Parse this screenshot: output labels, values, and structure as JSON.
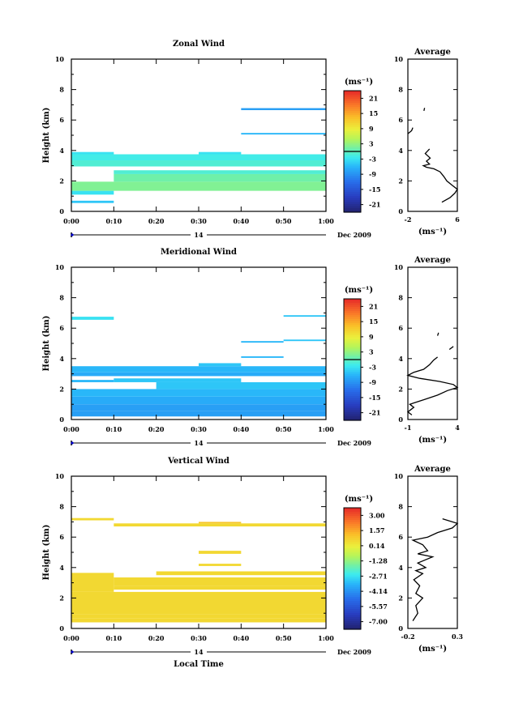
{
  "chart_data": [
    {
      "type": "heatmap",
      "title": "Zonal Wind",
      "xlabel": "",
      "ylabel": "Height (km)",
      "xticks": [
        "0:00",
        "0:10",
        "0:20",
        "0:30",
        "0:40",
        "0:50",
        "1:00"
      ],
      "xlim": [
        0,
        60
      ],
      "ylim": [
        0,
        10
      ],
      "yticks": [
        "0",
        "2",
        "4",
        "6",
        "8",
        "10"
      ],
      "date_day": "14",
      "date_month": "Dec 2009",
      "colorbar": {
        "unit": "(ms⁻¹)",
        "ticks": [
          "21",
          "15",
          "9",
          "3",
          "-3",
          "-9",
          "-15",
          "-21"
        ],
        "range": [
          -24,
          24
        ],
        "marker_value": 0
      },
      "cells": [
        {
          "t0": 0,
          "t1": 10,
          "h0": 0.55,
          "h1": 0.7,
          "v": -5
        },
        {
          "t0": 0,
          "t1": 10,
          "h0": 1.1,
          "h1": 1.35,
          "v": -3
        },
        {
          "t0": 0,
          "t1": 60,
          "h0": 1.35,
          "h1": 1.95,
          "v": 2
        },
        {
          "t0": 10,
          "t1": 60,
          "h0": 1.95,
          "h1": 2.45,
          "v": 1
        },
        {
          "t0": 10,
          "t1": 60,
          "h0": 2.45,
          "h1": 2.7,
          "v": -1
        },
        {
          "t0": 0,
          "t1": 60,
          "h0": 2.95,
          "h1": 3.35,
          "v": -1
        },
        {
          "t0": 0,
          "t1": 60,
          "h0": 3.35,
          "h1": 3.75,
          "v": -2
        },
        {
          "t0": 0,
          "t1": 10,
          "h0": 3.75,
          "h1": 3.9,
          "v": -3
        },
        {
          "t0": 30,
          "t1": 40,
          "h0": 3.75,
          "h1": 3.9,
          "v": -3
        },
        {
          "t0": 40,
          "t1": 60,
          "h0": 5.05,
          "h1": 5.15,
          "v": -6
        },
        {
          "t0": 40,
          "t1": 60,
          "h0": 6.65,
          "h1": 6.78,
          "v": -8
        }
      ],
      "average_panel": {
        "title": "Average",
        "xlabel": "(ms⁻¹)",
        "xticks": [
          "-2",
          "6"
        ],
        "xlim": [
          -2,
          6
        ],
        "ylim": [
          0,
          10
        ],
        "yticks": [
          "0",
          "2",
          "4",
          "6",
          "8",
          "10"
        ],
        "profile": [
          [
            3.5,
            0.6
          ],
          [
            4.8,
            0.9
          ],
          [
            5.6,
            1.2
          ],
          [
            6,
            1.45
          ],
          [
            5.2,
            1.7
          ],
          [
            4.3,
            2.0
          ],
          [
            3.8,
            2.3
          ],
          [
            3.2,
            2.6
          ],
          [
            2.2,
            2.8
          ],
          [
            1.0,
            2.9
          ],
          [
            0.5,
            3.0
          ],
          [
            1.5,
            3.1
          ],
          [
            1.0,
            3.3
          ],
          [
            1.6,
            3.5
          ],
          [
            0.8,
            3.8
          ],
          [
            1.5,
            4.1
          ]
        ],
        "profile_upper": [
          [
            -2,
            5.1
          ],
          [
            -1.4,
            5.3
          ],
          [
            -1.2,
            5.5
          ]
        ],
        "profile_small": [
          [
            0.6,
            6.6
          ],
          [
            0.7,
            6.8
          ]
        ]
      }
    },
    {
      "type": "heatmap",
      "title": "Meridional Wind",
      "xlabel": "",
      "ylabel": "Height (km)",
      "xticks": [
        "0:00",
        "0:10",
        "0:20",
        "0:30",
        "0:40",
        "0:50",
        "1:00"
      ],
      "xlim": [
        0,
        60
      ],
      "ylim": [
        0,
        10
      ],
      "yticks": [
        "0",
        "2",
        "4",
        "6",
        "8",
        "10"
      ],
      "date_day": "14",
      "date_month": "Dec 2009",
      "colorbar": {
        "unit": "(ms⁻¹)",
        "ticks": [
          "21",
          "15",
          "9",
          "3",
          "-3",
          "-9",
          "-15",
          "-21"
        ],
        "range": [
          -24,
          24
        ],
        "marker_value": 0
      },
      "cells": [
        {
          "t0": 0,
          "t1": 60,
          "h0": 0.2,
          "h1": 0.55,
          "v": -8
        },
        {
          "t0": 0,
          "t1": 60,
          "h0": 0.55,
          "h1": 1.0,
          "v": -8
        },
        {
          "t0": 0,
          "t1": 60,
          "h0": 1.0,
          "h1": 1.5,
          "v": -7
        },
        {
          "t0": 0,
          "t1": 60,
          "h0": 1.5,
          "h1": 2.0,
          "v": -6
        },
        {
          "t0": 20,
          "t1": 60,
          "h0": 2.0,
          "h1": 2.45,
          "v": -5
        },
        {
          "t0": 0,
          "t1": 10,
          "h0": 2.45,
          "h1": 2.6,
          "v": -6
        },
        {
          "t0": 10,
          "t1": 40,
          "h0": 2.45,
          "h1": 2.7,
          "v": -5
        },
        {
          "t0": 0,
          "t1": 60,
          "h0": 2.85,
          "h1": 3.1,
          "v": -7
        },
        {
          "t0": 0,
          "t1": 60,
          "h0": 3.1,
          "h1": 3.5,
          "v": -6
        },
        {
          "t0": 30,
          "t1": 40,
          "h0": 3.5,
          "h1": 3.7,
          "v": -5
        },
        {
          "t0": 40,
          "t1": 50,
          "h0": 4.05,
          "h1": 4.15,
          "v": -6
        },
        {
          "t0": 40,
          "t1": 50,
          "h0": 5.05,
          "h1": 5.15,
          "v": -6
        },
        {
          "t0": 50,
          "t1": 60,
          "h0": 5.15,
          "h1": 5.25,
          "v": -5
        },
        {
          "t0": 50,
          "t1": 60,
          "h0": 6.75,
          "h1": 6.85,
          "v": -5
        },
        {
          "t0": 0,
          "t1": 10,
          "h0": 6.55,
          "h1": 6.75,
          "v": -3
        }
      ],
      "average_panel": {
        "title": "Average",
        "xlabel": "(ms⁻¹)",
        "xticks": [
          "-1",
          "4"
        ],
        "xlim": [
          -1,
          4
        ],
        "ylim": [
          0,
          10
        ],
        "yticks": [
          "0",
          "2",
          "4",
          "6",
          "8",
          "10"
        ],
        "profile": [
          [
            -0.6,
            0.3
          ],
          [
            -1,
            0.5
          ],
          [
            -0.4,
            0.8
          ],
          [
            -0.8,
            1.0
          ],
          [
            0.6,
            1.3
          ],
          [
            2.0,
            1.6
          ],
          [
            3.0,
            1.9
          ],
          [
            4.0,
            2.1
          ],
          [
            3.6,
            2.3
          ],
          [
            2.2,
            2.5
          ],
          [
            0.2,
            2.7
          ],
          [
            -1,
            2.9
          ],
          [
            -0.4,
            3.1
          ],
          [
            0.6,
            3.3
          ],
          [
            1.2,
            3.6
          ],
          [
            1.6,
            3.9
          ],
          [
            2.0,
            4.1
          ]
        ],
        "profile_upper": [
          [
            3.2,
            4.6
          ],
          [
            3.6,
            4.8
          ]
        ],
        "profile_small": [
          [
            2.0,
            5.5
          ],
          [
            2.1,
            5.7
          ]
        ]
      }
    },
    {
      "type": "heatmap",
      "title": "Vertical Wind",
      "xlabel": "Local Time",
      "ylabel": "Height (km)",
      "xticks": [
        "0:00",
        "0:10",
        "0:20",
        "0:30",
        "0:40",
        "0:50",
        "1:00"
      ],
      "xlim": [
        0,
        60
      ],
      "ylim": [
        0,
        10
      ],
      "yticks": [
        "0",
        "2",
        "4",
        "6",
        "8",
        "10"
      ],
      "date_day": "14",
      "date_month": "Dec 2009",
      "colorbar": {
        "unit": "(ms⁻¹)",
        "ticks": [
          "3.00",
          "1.57",
          "0.14",
          "-1.28",
          "-2.71",
          "-4.14",
          "-5.57",
          "-7.00"
        ],
        "range": [
          -7.7,
          3.7
        ],
        "marker_value": null
      },
      "cells": [
        {
          "t0": 0,
          "t1": 60,
          "h0": 0.4,
          "h1": 0.65,
          "v": 0.6
        },
        {
          "t0": 0,
          "t1": 60,
          "h0": 0.65,
          "h1": 0.95,
          "v": 0.6
        },
        {
          "t0": 0,
          "t1": 60,
          "h0": 0.95,
          "h1": 2.4,
          "v": 0.6
        },
        {
          "t0": 0,
          "t1": 10,
          "h0": 2.4,
          "h1": 3.65,
          "v": 0.6
        },
        {
          "t0": 10,
          "t1": 60,
          "h0": 2.55,
          "h1": 2.8,
          "v": 0.6
        },
        {
          "t0": 10,
          "t1": 60,
          "h0": 2.8,
          "h1": 3.35,
          "v": 0.6
        },
        {
          "t0": 20,
          "t1": 60,
          "h0": 3.5,
          "h1": 3.75,
          "v": 0.6
        },
        {
          "t0": 30,
          "t1": 40,
          "h0": 4.1,
          "h1": 4.25,
          "v": 0.6
        },
        {
          "t0": 30,
          "t1": 40,
          "h0": 4.9,
          "h1": 5.1,
          "v": 0.6
        },
        {
          "t0": 10,
          "t1": 60,
          "h0": 6.7,
          "h1": 6.9,
          "v": 0.6
        },
        {
          "t0": 30,
          "t1": 40,
          "h0": 6.9,
          "h1": 7.0,
          "v": 1.0
        },
        {
          "t0": 0,
          "t1": 10,
          "h0": 7.1,
          "h1": 7.25,
          "v": 0.6
        }
      ],
      "average_panel": {
        "title": "Average",
        "xlabel": "(ms⁻¹)",
        "xticks": [
          "-0.2",
          "0.3"
        ],
        "xlim": [
          -0.2,
          0.3
        ],
        "ylim": [
          0,
          10
        ],
        "yticks": [
          "0",
          "2",
          "4",
          "6",
          "8",
          "10"
        ],
        "profile": [
          [
            -0.15,
            0.5
          ],
          [
            -0.1,
            1.0
          ],
          [
            -0.12,
            1.5
          ],
          [
            -0.05,
            2.0
          ],
          [
            -0.12,
            2.3
          ],
          [
            -0.08,
            2.8
          ],
          [
            -0.14,
            3.2
          ],
          [
            -0.05,
            3.6
          ],
          [
            -0.12,
            3.8
          ],
          [
            -0.02,
            4.0
          ],
          [
            -0.1,
            4.3
          ],
          [
            0.05,
            4.7
          ],
          [
            -0.1,
            4.9
          ],
          [
            0.0,
            5.1
          ],
          [
            -0.05,
            5.5
          ],
          [
            -0.15,
            5.8
          ],
          [
            0.0,
            6.0
          ],
          [
            0.1,
            6.3
          ],
          [
            0.25,
            6.6
          ],
          [
            0.3,
            6.9
          ],
          [
            0.15,
            7.2
          ]
        ],
        "profile_upper": [],
        "profile_small": []
      }
    }
  ]
}
